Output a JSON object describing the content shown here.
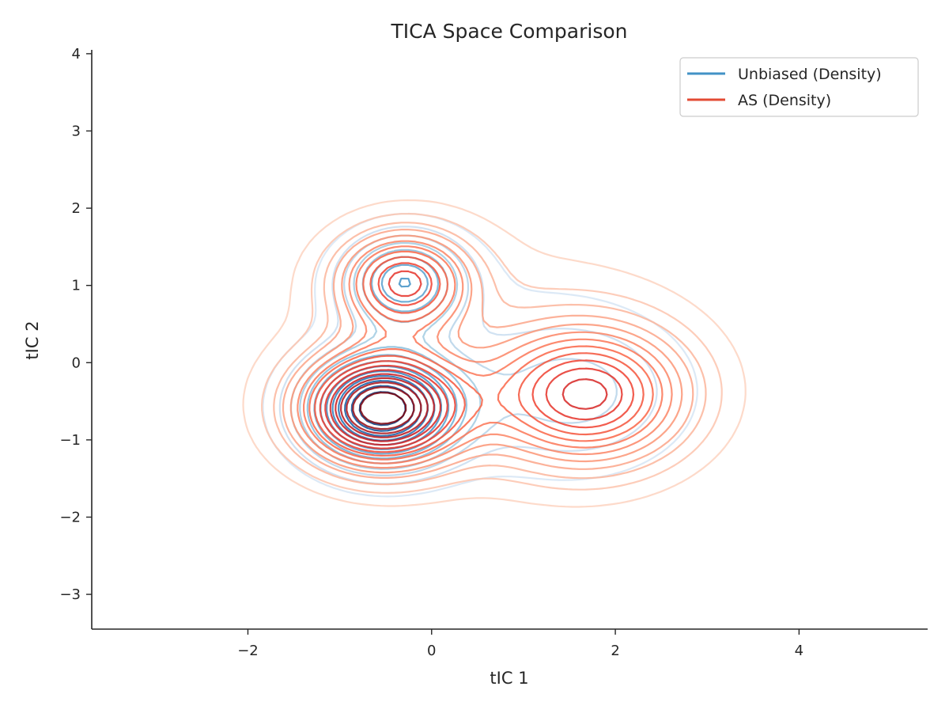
{
  "chart_data": {
    "type": "contour",
    "title": "TICA Space Comparison",
    "xlabel": "tIC 1",
    "ylabel": "tIC 2",
    "xlim": [
      -3.7,
      5.4
    ],
    "ylim": [
      -3.45,
      4.05
    ],
    "xticks": [
      -2,
      0,
      2,
      4
    ],
    "yticks": [
      -3,
      -2,
      -1,
      0,
      1,
      2,
      3,
      4
    ],
    "grid": false,
    "legend_position": "top-right",
    "series": [
      {
        "name": "Unbiased (Density)",
        "color": "#4292c6",
        "colormap": "Blues",
        "levels": 13,
        "modes": [
          {
            "x": -0.55,
            "y": -0.6,
            "sx": 0.55,
            "sy": 0.48,
            "w": 1.0
          },
          {
            "x": -0.3,
            "y": 1.05,
            "sx": 0.45,
            "sy": 0.42,
            "w": 0.55
          },
          {
            "x": 1.6,
            "y": -0.4,
            "sx": 0.85,
            "sy": 0.7,
            "w": 0.22
          },
          {
            "x": 0.4,
            "y": 0.1,
            "sx": 1.5,
            "sy": 1.3,
            "w": 0.07
          }
        ]
      },
      {
        "name": "AS (Density)",
        "color": "#e34a33",
        "colormap": "Reds",
        "levels": 17,
        "modes": [
          {
            "x": -0.55,
            "y": -0.6,
            "sx": 0.6,
            "sy": 0.5,
            "w": 0.9
          },
          {
            "x": -0.3,
            "y": 1.05,
            "sx": 0.5,
            "sy": 0.45,
            "w": 0.55
          },
          {
            "x": 1.7,
            "y": -0.42,
            "sx": 0.75,
            "sy": 0.62,
            "w": 0.6
          },
          {
            "x": 0.55,
            "y": 0.15,
            "sx": 1.7,
            "sy": 1.35,
            "w": 0.09
          }
        ]
      }
    ]
  }
}
